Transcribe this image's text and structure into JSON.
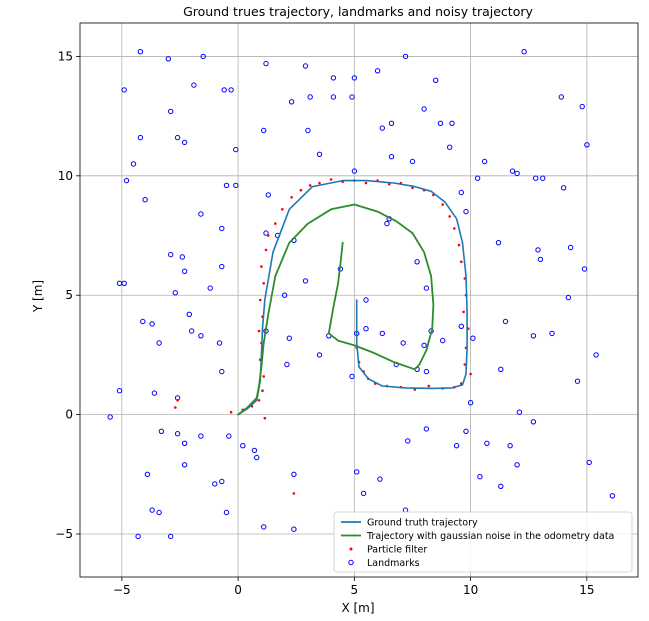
{
  "chart_data": {
    "type": "scatter",
    "title": "Ground trues trajectory, landmarks and noisy trajectory",
    "xlabel": "X [m]",
    "ylabel": "Y [m]",
    "xlim": [
      -6.8,
      17.2
    ],
    "ylim": [
      -6.8,
      16.4
    ],
    "xticks": [
      -5,
      0,
      5,
      10,
      15
    ],
    "yticks": [
      -5,
      0,
      5,
      10,
      15
    ],
    "xtick_labels": [
      "−5",
      "0",
      "5",
      "10",
      "15"
    ],
    "ytick_labels": [
      "−5",
      "0",
      "5",
      "10",
      "15"
    ],
    "grid": true,
    "legend_position": "bottom-right",
    "series": [
      {
        "name": "Ground truth trajectory",
        "kind": "line",
        "color": "#1f77b4",
        "x": [
          0.0,
          0.4,
          0.8,
          0.95,
          1.0,
          1.05,
          1.15,
          1.5,
          2.2,
          3.2,
          4.5,
          5.5,
          6.7,
          7.6,
          8.3,
          8.9,
          9.4,
          9.65,
          9.8,
          9.85,
          9.85,
          9.8,
          9.65,
          9.2,
          8.4,
          7.2,
          6.2,
          5.6,
          5.2,
          5.1,
          5.1,
          5.1
        ],
        "y": [
          0.0,
          0.25,
          0.6,
          1.4,
          2.5,
          3.6,
          4.8,
          6.8,
          8.6,
          9.55,
          9.8,
          9.8,
          9.7,
          9.55,
          9.35,
          8.9,
          8.2,
          7.2,
          5.8,
          4.3,
          2.8,
          1.7,
          1.25,
          1.12,
          1.1,
          1.12,
          1.2,
          1.5,
          2.0,
          3.0,
          4.0,
          4.8
        ]
      },
      {
        "name": "Trajectory with gaussian noise in the odometry data",
        "kind": "line",
        "color": "#2c8c2c",
        "x": [
          0.0,
          0.4,
          0.8,
          0.9,
          1.0,
          1.1,
          1.3,
          1.6,
          2.2,
          3.0,
          4.0,
          5.0,
          6.0,
          6.8,
          7.5,
          8.0,
          8.3,
          8.4,
          8.35,
          8.1,
          7.8,
          7.6,
          6.7,
          5.8,
          5.0,
          4.3,
          3.9,
          4.1,
          4.3,
          4.4,
          4.5
        ],
        "y": [
          0.0,
          0.3,
          0.7,
          1.2,
          2.0,
          3.0,
          4.2,
          5.8,
          7.2,
          8.0,
          8.6,
          8.8,
          8.5,
          8.1,
          7.6,
          6.8,
          5.8,
          4.6,
          3.6,
          2.7,
          2.1,
          1.9,
          2.2,
          2.6,
          2.9,
          3.1,
          3.4,
          4.5,
          5.5,
          6.3,
          7.2
        ]
      },
      {
        "name": "Particle filter",
        "kind": "scatter",
        "color": "#ff0000",
        "x": [
          -0.3,
          0.2,
          0.6,
          0.9,
          1.05,
          1.1,
          0.95,
          1.0,
          0.9,
          1.05,
          0.95,
          1.1,
          1.0,
          1.2,
          1.3,
          1.6,
          1.9,
          2.3,
          2.7,
          3.1,
          3.5,
          4.0,
          4.5,
          5.0,
          5.5,
          6.0,
          6.5,
          7.0,
          7.5,
          8.0,
          8.4,
          8.8,
          9.1,
          9.3,
          9.5,
          9.6,
          9.75,
          9.8,
          9.7,
          9.9,
          9.8,
          9.75,
          10.0,
          9.6,
          9.3,
          8.8,
          8.2,
          7.6,
          7.0,
          6.4,
          5.9,
          5.6,
          5.4,
          5.2,
          5.1,
          -2.7,
          -2.6,
          1.15,
          2.4
        ],
        "y": [
          0.1,
          0.2,
          0.35,
          0.6,
          1.0,
          1.6,
          2.3,
          3.0,
          3.5,
          4.1,
          4.8,
          5.5,
          6.2,
          6.9,
          7.5,
          8.0,
          8.6,
          9.1,
          9.4,
          9.6,
          9.7,
          9.85,
          9.75,
          9.8,
          9.7,
          9.8,
          9.65,
          9.7,
          9.5,
          9.4,
          9.2,
          8.8,
          8.3,
          7.8,
          7.1,
          6.4,
          5.7,
          5.0,
          4.3,
          3.6,
          2.8,
          2.1,
          1.7,
          1.3,
          1.15,
          1.1,
          1.2,
          1.05,
          1.15,
          1.2,
          1.3,
          1.5,
          1.8,
          2.2,
          2.8,
          0.3,
          0.6,
          -0.15,
          -3.3
        ]
      },
      {
        "name": "Landmarks",
        "kind": "scatter",
        "color": "#0000ff",
        "x": [
          -4.2,
          -3.0,
          -1.5,
          1.2,
          2.9,
          4.1,
          5.0,
          6.0,
          7.2,
          8.5,
          12.3,
          -4.9,
          -1.9,
          -0.6,
          -0.3,
          2.3,
          3.1,
          4.1,
          4.9,
          13.9,
          14.8,
          -2.9,
          -4.2,
          -2.6,
          -2.3,
          1.1,
          3.0,
          6.2,
          6.6,
          8.0,
          8.7,
          9.2,
          -0.1,
          -4.5,
          3.5,
          9.1,
          -4.8,
          1.3,
          6.6,
          7.5,
          10.6,
          11.8,
          12.0,
          12.8,
          13.1,
          -4.0,
          -0.5,
          -0.1,
          5.0,
          9.6,
          10.3,
          14.0,
          15.0,
          -1.6,
          -0.7,
          1.2,
          1.7,
          2.4,
          6.4,
          6.5,
          9.8,
          11.2,
          12.9,
          13.0,
          14.3,
          -2.9,
          -2.4,
          -2.3,
          -0.7,
          2.0,
          2.9,
          4.4,
          5.5,
          7.7,
          8.1,
          14.9,
          -5.1,
          -4.9,
          -2.7,
          -1.2,
          -3.7,
          -2.0,
          -4.1,
          -0.8,
          1.2,
          2.2,
          3.9,
          5.1,
          5.5,
          6.2,
          7.1,
          8.0,
          8.3,
          8.8,
          9.6,
          10.1,
          11.5,
          12.7,
          13.5,
          14.2,
          -3.4,
          -1.6,
          -0.7,
          -2.1,
          15.4,
          14.6,
          2.1,
          3.5,
          4.9,
          6.8,
          7.7,
          8.1,
          10.0,
          11.3,
          -3.6,
          -2.6,
          -5.1,
          -5.5,
          12.1,
          12.7,
          -1.6,
          -2.6,
          -2.3,
          -3.3,
          -0.4,
          0.2,
          0.7,
          0.8,
          7.3,
          8.1,
          9.4,
          9.8,
          10.7,
          11.7,
          12.0,
          15.1,
          -3.9,
          -2.3,
          -0.7,
          -1.0,
          2.4,
          5.1,
          5.4,
          6.1,
          10.4,
          11.3,
          16.1,
          -3.7,
          -3.4,
          -0.5,
          -4.3,
          -2.9,
          1.1,
          2.4,
          7.2
        ],
        "y": [
          15.2,
          14.9,
          15.0,
          14.7,
          14.6,
          14.1,
          14.1,
          14.4,
          15.0,
          14.0,
          15.2,
          13.6,
          13.8,
          13.6,
          13.6,
          13.1,
          13.3,
          13.3,
          13.3,
          13.3,
          12.9,
          12.7,
          11.6,
          11.6,
          11.4,
          11.9,
          11.9,
          12.0,
          12.2,
          12.8,
          12.2,
          12.2,
          11.1,
          10.5,
          10.9,
          11.2,
          9.8,
          9.2,
          10.8,
          10.6,
          10.6,
          10.2,
          10.1,
          9.9,
          9.9,
          9.0,
          9.6,
          9.6,
          10.2,
          9.3,
          9.9,
          9.5,
          11.3,
          8.4,
          7.8,
          7.6,
          7.5,
          7.3,
          8.0,
          8.2,
          8.5,
          7.2,
          6.9,
          6.5,
          7.0,
          6.7,
          6.6,
          6.0,
          6.2,
          5.0,
          5.6,
          6.1,
          4.8,
          6.4,
          5.3,
          6.1,
          5.5,
          5.5,
          5.1,
          5.3,
          3.8,
          3.5,
          3.9,
          3.0,
          3.5,
          3.2,
          3.3,
          3.4,
          3.6,
          3.4,
          3.0,
          2.9,
          3.5,
          3.1,
          3.7,
          3.2,
          3.9,
          3.3,
          3.4,
          4.9,
          3.0,
          3.3,
          1.8,
          4.2,
          2.5,
          1.4,
          2.1,
          2.5,
          1.6,
          2.1,
          1.9,
          1.8,
          0.5,
          1.9,
          0.9,
          0.7,
          1.0,
          -0.1,
          0.1,
          -0.3,
          -0.9,
          -0.8,
          -1.2,
          -0.7,
          -0.9,
          -1.3,
          -1.5,
          -1.8,
          -1.1,
          -0.6,
          -1.3,
          -0.7,
          -1.2,
          -1.3,
          -2.1,
          -2.0,
          -2.5,
          -2.1,
          -2.8,
          -2.9,
          -2.5,
          -2.4,
          -3.3,
          -2.7,
          -2.6,
          -3.0,
          -3.4,
          -4.0,
          -4.1,
          -4.1,
          -5.1,
          -5.1,
          -4.7,
          -4.8,
          -4.0
        ]
      }
    ]
  }
}
